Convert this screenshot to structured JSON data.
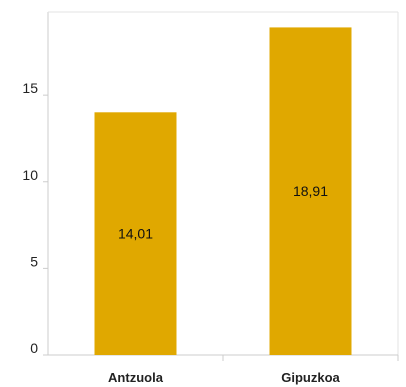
{
  "chart_data": {
    "type": "bar",
    "categories": [
      "Antzuola",
      "Gipuzkoa"
    ],
    "values": [
      14.01,
      18.91
    ],
    "data_labels": [
      "14,01",
      "18,91"
    ],
    "title": "",
    "xlabel": "",
    "ylabel": "",
    "ylim": [
      0,
      19.8
    ],
    "yticks": [
      0,
      5,
      10,
      15
    ],
    "ytick_labels": [
      "0",
      "5",
      "10",
      "15"
    ],
    "grid": false,
    "legend": "none",
    "bar_color": "#E0A800",
    "axis_color": "#cccccc"
  }
}
